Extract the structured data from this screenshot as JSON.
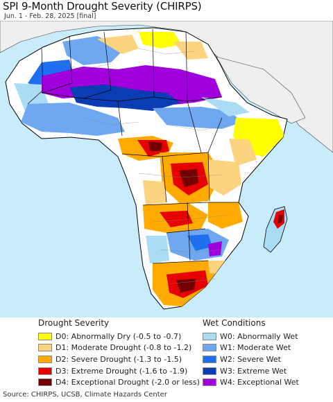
{
  "header": {
    "title": "SPI 9-Month Drought Severity (CHIRPS)",
    "subtitle": "Jun. 1 - Feb. 28, 2025 [final]"
  },
  "legend": {
    "drought": {
      "heading": "Drought Severity",
      "items": [
        {
          "label": "D0: Abnormally Dry (-0.5 to -0.7)",
          "color": "#ffff00"
        },
        {
          "label": "D1: Moderate Drought (-0.8 to -1.2)",
          "color": "#fcd37f"
        },
        {
          "label": "D2: Severe Drought (-1.3 to -1.5)",
          "color": "#ffaa00"
        },
        {
          "label": "D3: Extreme Drought (-1.6 to -1.9)",
          "color": "#e60000"
        },
        {
          "label": "D4: Exceptional Drought (-2.0 or less)",
          "color": "#730000"
        }
      ]
    },
    "wet": {
      "heading": "Wet Conditions",
      "items": [
        {
          "label": "W0: Abnormally Wet",
          "color": "#aadcf5"
        },
        {
          "label": "W1: Moderate Wet",
          "color": "#6fa8f0"
        },
        {
          "label": "W2: Severe Wet",
          "color": "#1e6ef0"
        },
        {
          "label": "W3: Extreme Wet",
          "color": "#0a3cb4"
        },
        {
          "label": "W4: Exceptional Wet",
          "color": "#a000dc"
        }
      ]
    }
  },
  "map_colors": {
    "ocean": "#c9ecfa",
    "land_nodata": "#ffffff",
    "outside_region": "#efefef",
    "border": "#000000"
  },
  "footer": {
    "source": "Source: CHIRPS, UCSB, Climate Hazards Center"
  }
}
